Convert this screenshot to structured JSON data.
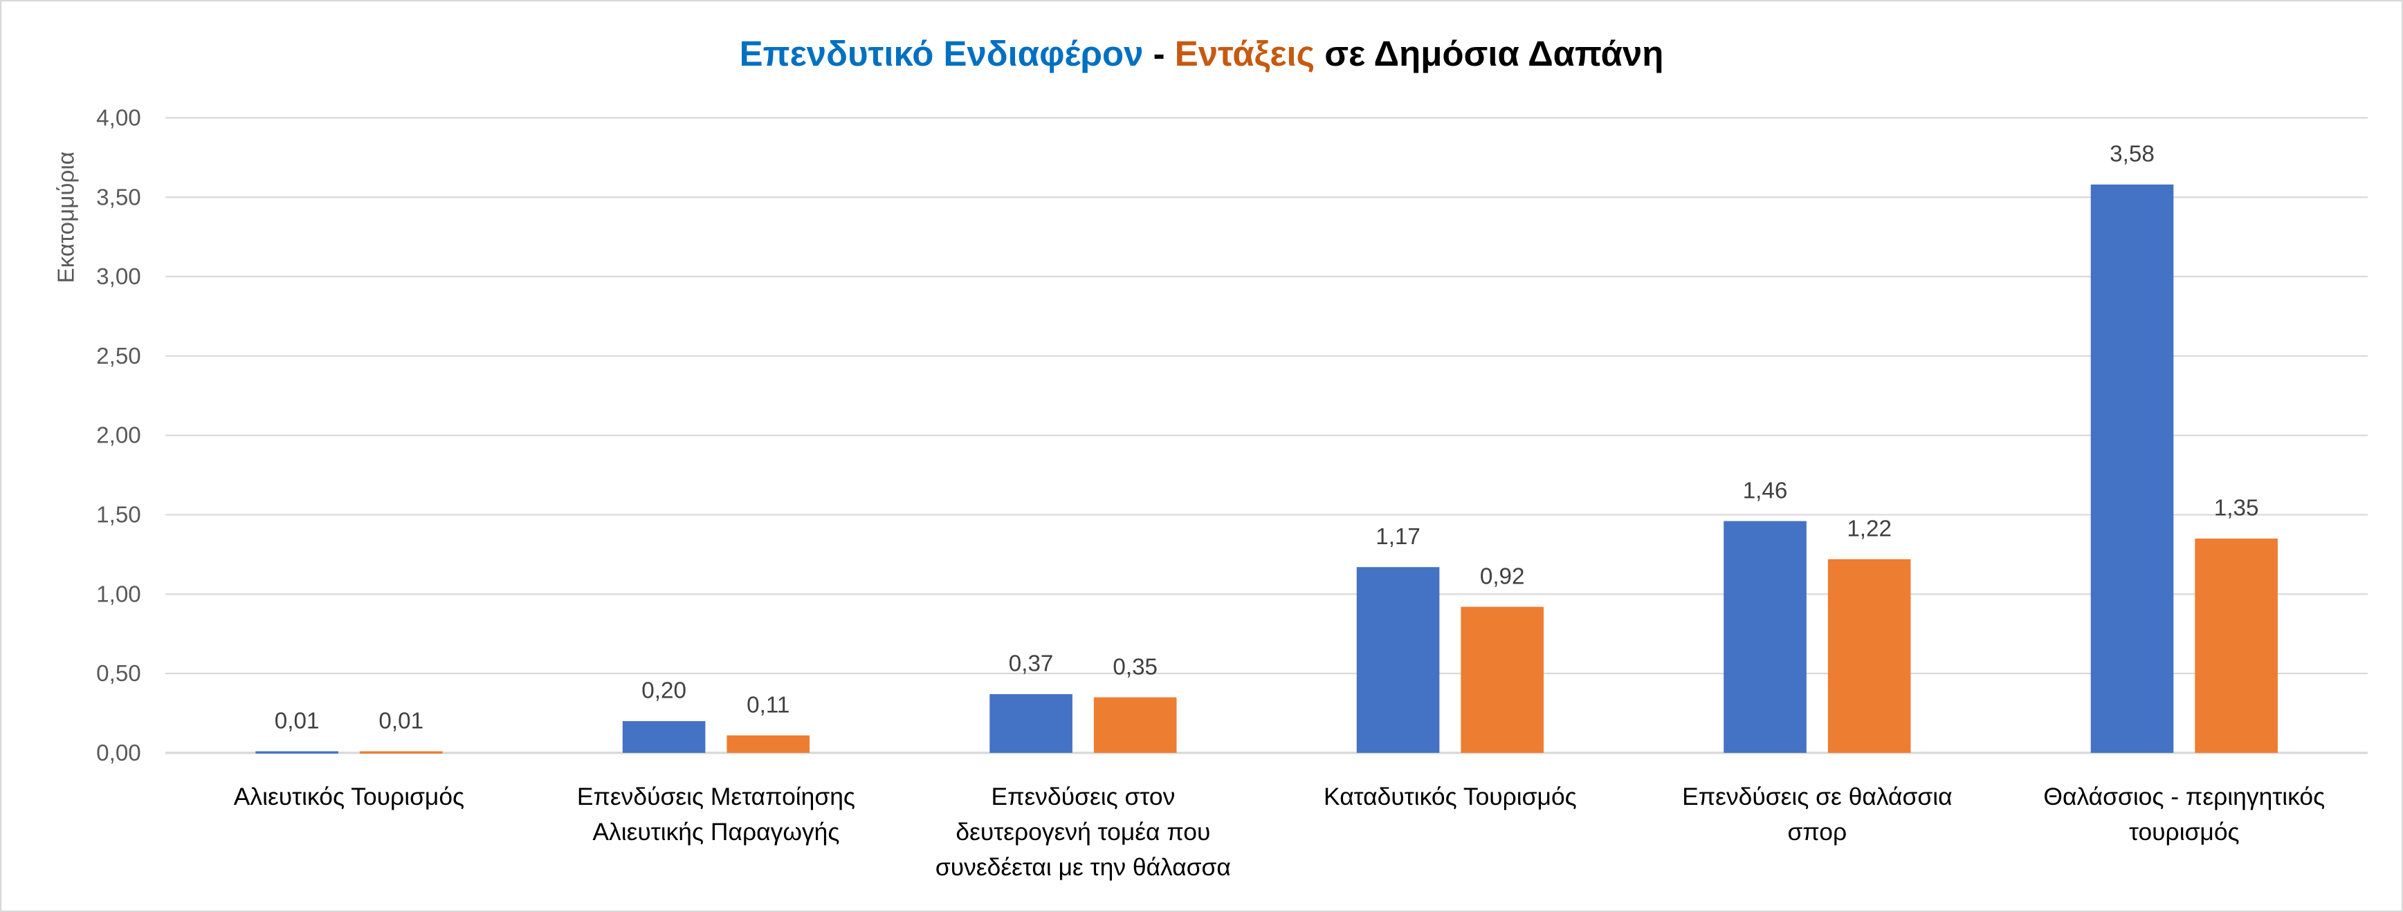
{
  "chart_data": {
    "type": "bar",
    "title_parts": [
      {
        "text": "Επενδυτικό Ενδιαφέρον",
        "color": "#0070C0"
      },
      {
        "text": " - ",
        "color": "#000000"
      },
      {
        "text": "Εντάξεις",
        "color": "#C55A11"
      },
      {
        "text": " σε Δημόσια Δαπάνη",
        "color": "#000000"
      }
    ],
    "ylabel": "Εκατομμύρια",
    "xlabel": "",
    "ylim": [
      0,
      4
    ],
    "yticks": [
      "0,00",
      "0,50",
      "1,00",
      "1,50",
      "2,00",
      "2,50",
      "3,00",
      "3,50",
      "4,00"
    ],
    "grid": true,
    "categories": [
      [
        "Αλιευτικός Τουρισμός"
      ],
      [
        "Επενδύσεις Μεταποίησης",
        "Αλιευτικής Παραγωγής"
      ],
      [
        "Επενδύσεις στον",
        "δευτερογενή τομέα που",
        "συνεδέεται με την θάλασσα"
      ],
      [
        "Καταδυτικός Τουρισμός"
      ],
      [
        "Επενδύσεις σε θαλάσσια",
        "σπορ"
      ],
      [
        "Θαλάσσιος - περιηγητικός",
        "τουρισμός"
      ]
    ],
    "series": [
      {
        "name": "Επενδυτικό Ενδιαφέρον",
        "color": "#4472C4",
        "values": [
          0.01,
          0.2,
          0.37,
          1.17,
          1.46,
          3.58
        ],
        "labels": [
          "0,01",
          "0,20",
          "0,37",
          "1,17",
          "1,46",
          "3,58"
        ]
      },
      {
        "name": "Εντάξεις",
        "color": "#ED7D31",
        "values": [
          0.01,
          0.11,
          0.35,
          0.92,
          1.22,
          1.35
        ],
        "labels": [
          "0,01",
          "0,11",
          "0,35",
          "0,92",
          "1,22",
          "1,35"
        ]
      }
    ]
  }
}
